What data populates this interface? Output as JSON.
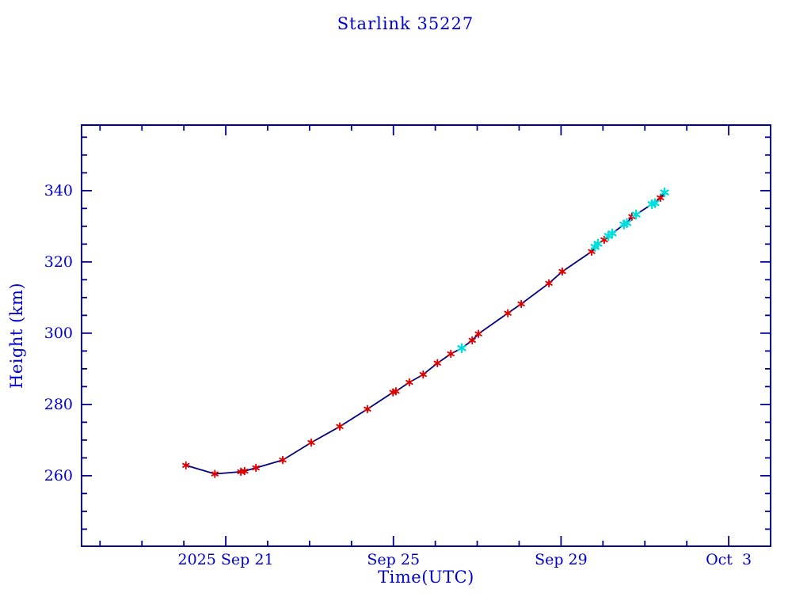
{
  "colors": {
    "background": "#ffffff",
    "frame": "#00008b",
    "text": "#0000cc",
    "curve": "#000080",
    "marker_red": "#dd0000",
    "marker_cyan": "#00dddd"
  },
  "chart_data": {
    "type": "line",
    "title": "Starlink 35227",
    "xlabel": "Time(UTC)",
    "ylabel": "Height (km)",
    "x_unit": "days relative to 2025 Sep 21 00:00 UTC",
    "xlim": [
      -3.44,
      13.0
    ],
    "ylim": [
      240.2,
      358.4
    ],
    "grid": false,
    "legend": null,
    "marker_shape": "asterisk",
    "x_major_ticks": [
      {
        "day": 0,
        "label": "2025 Sep 21"
      },
      {
        "day": 4,
        "label": "Sep 25"
      },
      {
        "day": 8,
        "label": "Sep 29"
      },
      {
        "day": 12,
        "label": "Oct  3"
      }
    ],
    "x_minor_tick_interval_days": 1,
    "y_major_ticks": [
      260,
      280,
      300,
      320,
      340
    ],
    "y_minor_tick_interval_km": 5,
    "points": [
      {
        "day": -0.95,
        "height": 262.9,
        "color": "red"
      },
      {
        "day": -0.26,
        "height": 260.5,
        "color": "red"
      },
      {
        "day": 0.36,
        "height": 261.1,
        "color": "red"
      },
      {
        "day": 0.45,
        "height": 261.3,
        "color": "red"
      },
      {
        "day": 0.72,
        "height": 262.2,
        "color": "red"
      },
      {
        "day": 1.36,
        "height": 264.4,
        "color": "red"
      },
      {
        "day": 2.04,
        "height": 269.3,
        "color": "red"
      },
      {
        "day": 2.72,
        "height": 273.8,
        "color": "red"
      },
      {
        "day": 3.38,
        "height": 278.7,
        "color": "red"
      },
      {
        "day": 3.99,
        "height": 283.4,
        "color": "red"
      },
      {
        "day": 4.06,
        "height": 283.7,
        "color": "red"
      },
      {
        "day": 4.38,
        "height": 286.2,
        "color": "red"
      },
      {
        "day": 4.71,
        "height": 288.4,
        "color": "red"
      },
      {
        "day": 5.05,
        "height": 291.6,
        "color": "red"
      },
      {
        "day": 5.37,
        "height": 294.2,
        "color": "red"
      },
      {
        "day": 5.63,
        "height": 295.8,
        "color": "cyan"
      },
      {
        "day": 5.88,
        "height": 298.0,
        "color": "red"
      },
      {
        "day": 6.03,
        "height": 299.8,
        "color": "red"
      },
      {
        "day": 6.73,
        "height": 305.6,
        "color": "red"
      },
      {
        "day": 7.05,
        "height": 308.2,
        "color": "red"
      },
      {
        "day": 7.71,
        "height": 314.0,
        "color": "red"
      },
      {
        "day": 8.03,
        "height": 317.3,
        "color": "red"
      },
      {
        "day": 8.73,
        "height": 322.9,
        "color": "red"
      },
      {
        "day": 8.81,
        "height": 324.2,
        "color": "cyan"
      },
      {
        "day": 8.88,
        "height": 325.1,
        "color": "cyan"
      },
      {
        "day": 9.03,
        "height": 326.2,
        "color": "red"
      },
      {
        "day": 9.13,
        "height": 327.3,
        "color": "cyan"
      },
      {
        "day": 9.22,
        "height": 328.0,
        "color": "cyan"
      },
      {
        "day": 9.5,
        "height": 330.5,
        "color": "cyan"
      },
      {
        "day": 9.57,
        "height": 330.9,
        "color": "cyan"
      },
      {
        "day": 9.69,
        "height": 332.7,
        "color": "red"
      },
      {
        "day": 9.79,
        "height": 333.3,
        "color": "cyan"
      },
      {
        "day": 10.17,
        "height": 336.2,
        "color": "cyan"
      },
      {
        "day": 10.24,
        "height": 336.5,
        "color": "cyan"
      },
      {
        "day": 10.37,
        "height": 338.0,
        "color": "red"
      },
      {
        "day": 10.47,
        "height": 339.5,
        "color": "cyan"
      }
    ]
  }
}
